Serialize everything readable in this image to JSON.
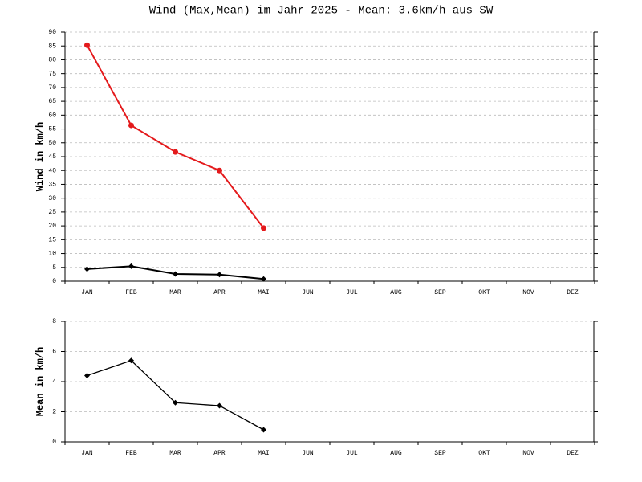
{
  "chart_data": [
    {
      "type": "line",
      "title": "Wind (Max,Mean) im Jahr 2025 - Mean: 3.6km/h aus SW",
      "ylabel": "Wind in km/h",
      "categories": [
        "JAN",
        "FEB",
        "MAR",
        "APR",
        "MAI",
        "JUN",
        "JUL",
        "AUG",
        "SEP",
        "OKT",
        "NOV",
        "DEZ"
      ],
      "series": [
        {
          "color": "#e41a1c",
          "marker": "circle",
          "values": [
            85.3,
            56.3,
            46.7,
            40.0,
            19.2,
            null,
            null,
            null,
            null,
            null,
            null,
            null
          ]
        },
        {
          "color": "#000000",
          "marker": "diamond",
          "values": [
            4.4,
            5.4,
            2.6,
            2.4,
            0.8,
            null,
            null,
            null,
            null,
            null,
            null,
            null
          ]
        }
      ],
      "ylim": [
        0,
        90
      ],
      "yticks": [
        0,
        5,
        10,
        15,
        20,
        25,
        30,
        35,
        40,
        45,
        50,
        55,
        60,
        65,
        70,
        75,
        80,
        85,
        90
      ],
      "grid": true
    },
    {
      "type": "line",
      "ylabel": "Mean in km/h",
      "categories": [
        "JAN",
        "FEB",
        "MAR",
        "APR",
        "MAI",
        "JUN",
        "JUL",
        "AUG",
        "SEP",
        "OKT",
        "NOV",
        "DEZ"
      ],
      "series": [
        {
          "color": "#000000",
          "marker": "diamond",
          "values": [
            4.4,
            5.4,
            2.6,
            2.4,
            0.8,
            null,
            null,
            null,
            null,
            null,
            null,
            null
          ]
        }
      ],
      "ylim": [
        0,
        8
      ],
      "yticks": [
        0,
        2,
        4,
        6,
        8
      ],
      "grid": true
    }
  ]
}
